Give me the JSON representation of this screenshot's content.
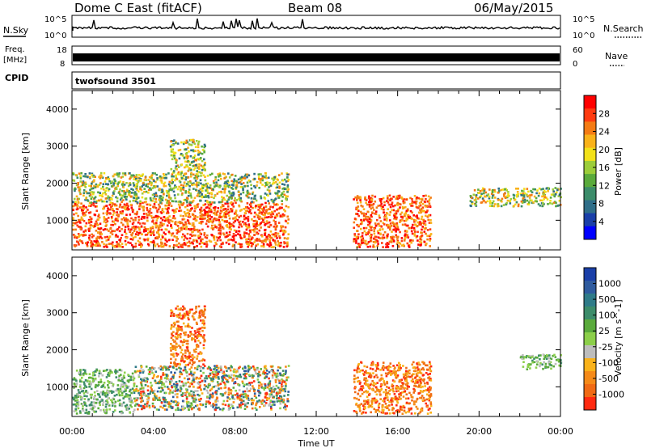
{
  "header": {
    "title": "Dome C East (fitACF)",
    "beam": "Beam 08",
    "date": "06/May/2015"
  },
  "strips": {
    "nsky": {
      "label": "N.Sky",
      "top_tick": "10^5",
      "bottom_tick": "10^0"
    },
    "nsearch": {
      "label": "N.Search",
      "top_tick": "10^5",
      "bottom_tick": "10^0"
    },
    "freq": {
      "label_line1": "Freq.",
      "label_line2": "[MHz]",
      "top_tick": "18",
      "bottom_tick": "8"
    },
    "nave": {
      "label": "Nave",
      "top_tick": "60",
      "bottom_tick": "0"
    },
    "cpid": {
      "label": "CPID",
      "program": "twofsound 3501"
    }
  },
  "chart_data": [
    {
      "type": "heatmap",
      "name": "power",
      "ylabel": "Slant Range [km]",
      "xlabel": "",
      "xlim": [
        0,
        24
      ],
      "ylim": [
        200,
        4500
      ],
      "x_ticks": [
        0,
        4,
        8,
        12,
        16,
        20,
        24
      ],
      "y_ticks": [
        1000,
        2000,
        3000,
        4000
      ],
      "colorbar": {
        "label": "Power [dB]",
        "range": [
          0,
          32
        ],
        "ticks": [
          "4",
          "8",
          "12",
          "16",
          "20",
          "24",
          "28"
        ]
      },
      "regions": [
        {
          "t0": 0.0,
          "t1": 10.6,
          "r0": 300,
          "r1": 1500,
          "level": "high"
        },
        {
          "t0": 0.0,
          "t1": 10.6,
          "r0": 1500,
          "r1": 2300,
          "level": "mid"
        },
        {
          "t0": 4.8,
          "t1": 6.5,
          "r0": 2300,
          "r1": 3200,
          "level": "mid"
        },
        {
          "t0": 13.8,
          "t1": 17.6,
          "r0": 300,
          "r1": 1700,
          "level": "high"
        },
        {
          "t0": 19.5,
          "t1": 24.0,
          "r0": 1400,
          "r1": 1900,
          "level": "mid"
        }
      ]
    },
    {
      "type": "heatmap",
      "name": "velocity",
      "ylabel": "Slant Range [km]",
      "xlabel": "Time UT",
      "xlim": [
        0,
        24
      ],
      "ylim": [
        200,
        4500
      ],
      "x_ticks": [
        0,
        4,
        8,
        12,
        16,
        20,
        24
      ],
      "x_tick_labels": [
        "00:00",
        "04:00",
        "08:00",
        "12:00",
        "16:00",
        "20:00",
        "00:00"
      ],
      "y_ticks": [
        1000,
        2000,
        3000,
        4000
      ],
      "colorbar": {
        "label": "Velocity [m s^-1]",
        "ticks": [
          "1000",
          "500",
          "100",
          "25",
          "-25",
          "-100",
          "-500",
          "-1000"
        ]
      },
      "regions": [
        {
          "t0": 0.0,
          "t1": 3.0,
          "r0": 300,
          "r1": 1500,
          "level": "green"
        },
        {
          "t0": 3.0,
          "t1": 10.6,
          "r0": 400,
          "r1": 1600,
          "level": "mixed"
        },
        {
          "t0": 4.8,
          "t1": 6.5,
          "r0": 1600,
          "r1": 3200,
          "level": "orange"
        },
        {
          "t0": 13.8,
          "t1": 17.6,
          "r0": 300,
          "r1": 1700,
          "level": "orange"
        },
        {
          "t0": 22.0,
          "t1": 24.0,
          "r0": 1500,
          "r1": 1900,
          "level": "green"
        }
      ]
    }
  ],
  "colors": {
    "power_scale": [
      "#0000ff",
      "#1a3fa8",
      "#2f6e88",
      "#3c8c6a",
      "#5aaa3c",
      "#9ccd3a",
      "#f2e11a",
      "#f9b21a",
      "#f47b14",
      "#ff3b10",
      "#ff0000"
    ],
    "velocity_scale": [
      "#1a3fa8",
      "#2f5b9e",
      "#2f7b88",
      "#3c8c6a",
      "#5aaa3c",
      "#8ccf4a",
      "#bdbdbd",
      "#f9b21a",
      "#f58a18",
      "#f06a14",
      "#ff2a10"
    ]
  }
}
